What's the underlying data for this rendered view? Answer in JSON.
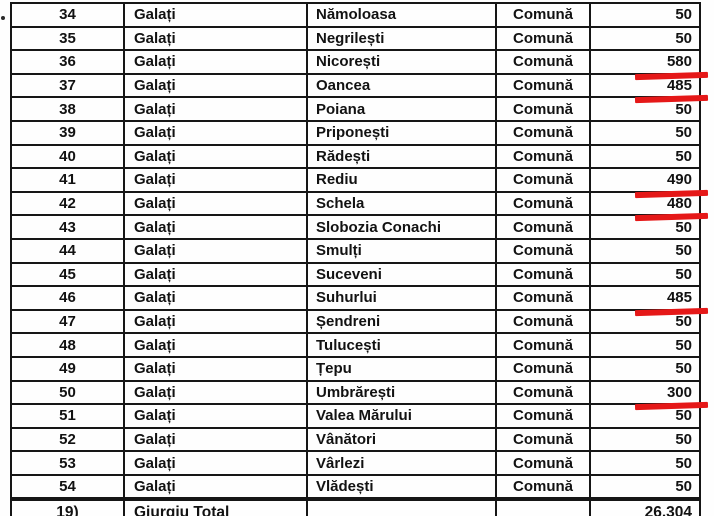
{
  "document": {
    "kind": "scanned-table-page",
    "columns": [
      "row-number",
      "county",
      "locality",
      "locality-type",
      "value"
    ]
  },
  "table": {
    "rows": [
      {
        "no": "34",
        "county": "Galați",
        "locality": "Nămoloasa",
        "type": "Comună",
        "value": "50",
        "marked": false
      },
      {
        "no": "35",
        "county": "Galați",
        "locality": "Negrilești",
        "type": "Comună",
        "value": "50",
        "marked": false
      },
      {
        "no": "36",
        "county": "Galați",
        "locality": "Nicorești",
        "type": "Comună",
        "value": "580",
        "marked": true
      },
      {
        "no": "37",
        "county": "Galați",
        "locality": "Oancea",
        "type": "Comună",
        "value": "485",
        "marked": true
      },
      {
        "no": "38",
        "county": "Galați",
        "locality": "Poiana",
        "type": "Comună",
        "value": "50",
        "marked": false
      },
      {
        "no": "39",
        "county": "Galați",
        "locality": "Priponești",
        "type": "Comună",
        "value": "50",
        "marked": false
      },
      {
        "no": "40",
        "county": "Galați",
        "locality": "Rădești",
        "type": "Comună",
        "value": "50",
        "marked": false
      },
      {
        "no": "41",
        "county": "Galați",
        "locality": "Rediu",
        "type": "Comună",
        "value": "490",
        "marked": true
      },
      {
        "no": "42",
        "county": "Galați",
        "locality": "Schela",
        "type": "Comună",
        "value": "480",
        "marked": true
      },
      {
        "no": "43",
        "county": "Galați",
        "locality": "Slobozia Conachi",
        "type": "Comună",
        "value": "50",
        "marked": false
      },
      {
        "no": "44",
        "county": "Galați",
        "locality": "Smulți",
        "type": "Comună",
        "value": "50",
        "marked": false
      },
      {
        "no": "45",
        "county": "Galați",
        "locality": "Suceveni",
        "type": "Comună",
        "value": "50",
        "marked": false
      },
      {
        "no": "46",
        "county": "Galați",
        "locality": "Suhurlui",
        "type": "Comună",
        "value": "485",
        "marked": true
      },
      {
        "no": "47",
        "county": "Galați",
        "locality": "Șendreni",
        "type": "Comună",
        "value": "50",
        "marked": false
      },
      {
        "no": "48",
        "county": "Galați",
        "locality": "Tulucești",
        "type": "Comună",
        "value": "50",
        "marked": false
      },
      {
        "no": "49",
        "county": "Galați",
        "locality": "Țepu",
        "type": "Comună",
        "value": "50",
        "marked": false
      },
      {
        "no": "50",
        "county": "Galați",
        "locality": "Umbrărești",
        "type": "Comună",
        "value": "300",
        "marked": true
      },
      {
        "no": "51",
        "county": "Galați",
        "locality": "Valea Mărului",
        "type": "Comună",
        "value": "50",
        "marked": false
      },
      {
        "no": "52",
        "county": "Galați",
        "locality": "Vânători",
        "type": "Comună",
        "value": "50",
        "marked": false
      },
      {
        "no": "53",
        "county": "Galați",
        "locality": "Vârlezi",
        "type": "Comună",
        "value": "50",
        "marked": false
      },
      {
        "no": "54",
        "county": "Galați",
        "locality": "Vlădești",
        "type": "Comună",
        "value": "50",
        "marked": false
      }
    ],
    "total_row": {
      "index_label": "19)",
      "label": "Giurgiu Total",
      "locality": "",
      "type": "",
      "value": "26.304"
    }
  },
  "colors": {
    "underline_red": "#e51818",
    "ink": "#161616"
  }
}
